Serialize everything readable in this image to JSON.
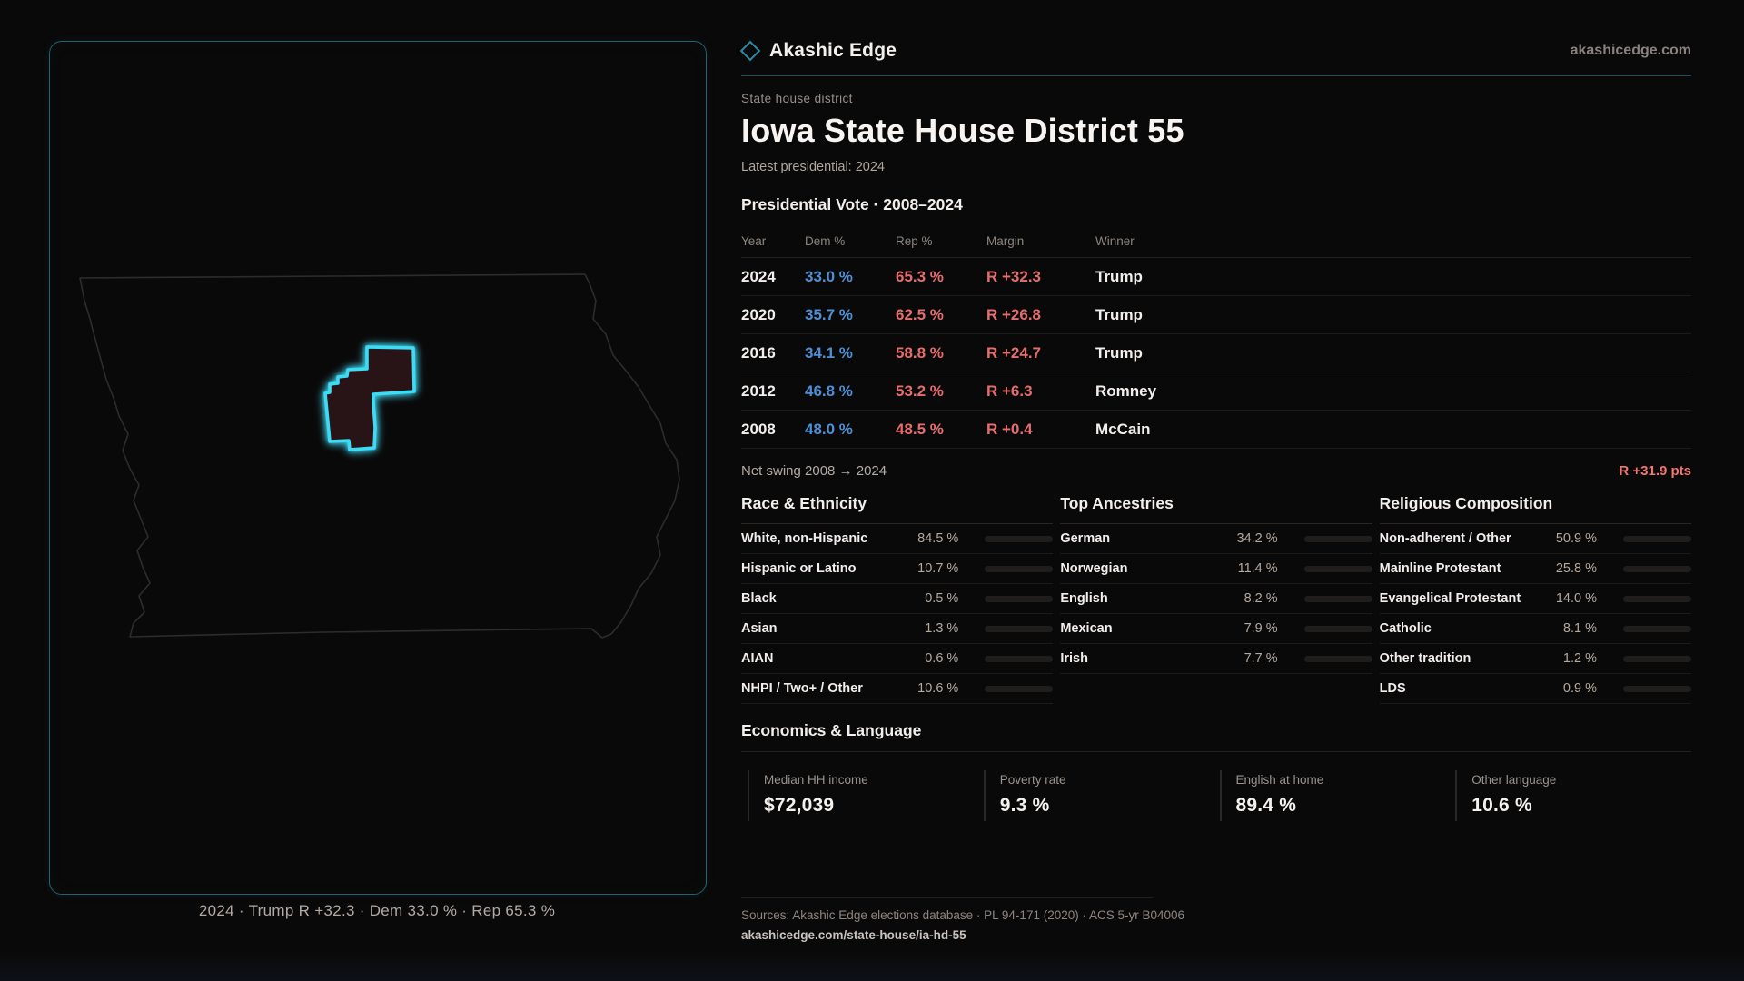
{
  "brand": {
    "name": "Akashic Edge",
    "site": "akashicedge.com"
  },
  "page": {
    "kicker": "State house district",
    "title": "Iowa State House District 55",
    "latest_line": "Latest presidential: 2024"
  },
  "vote_table": {
    "title": "Presidential Vote · 2008–2024",
    "columns": [
      "Year",
      "Dem %",
      "Rep %",
      "Margin",
      "Winner"
    ],
    "rows": [
      {
        "year": "2024",
        "dem": "33.0 %",
        "rep": "65.3 %",
        "margin": "R +32.3",
        "winner": "Trump"
      },
      {
        "year": "2020",
        "dem": "35.7 %",
        "rep": "62.5 %",
        "margin": "R +26.8",
        "winner": "Trump"
      },
      {
        "year": "2016",
        "dem": "34.1 %",
        "rep": "58.8 %",
        "margin": "R +24.7",
        "winner": "Trump"
      },
      {
        "year": "2012",
        "dem": "46.8 %",
        "rep": "53.2 %",
        "margin": "R +6.3",
        "winner": "Romney"
      },
      {
        "year": "2008",
        "dem": "48.0 %",
        "rep": "48.5 %",
        "margin": "R +0.4",
        "winner": "McCain"
      }
    ],
    "net_swing_label": "Net swing 2008 → 2024",
    "net_swing_value": "R +31.9 pts"
  },
  "demographics": [
    {
      "title": "Race & Ethnicity",
      "rows": [
        {
          "label": "White, non-Hispanic",
          "value": "84.5 %",
          "pct": 84.5
        },
        {
          "label": "Hispanic or Latino",
          "value": "10.7 %",
          "pct": 10.7
        },
        {
          "label": "Black",
          "value": "0.5 %",
          "pct": 0.5
        },
        {
          "label": "Asian",
          "value": "1.3 %",
          "pct": 1.3
        },
        {
          "label": "AIAN",
          "value": "0.6 %",
          "pct": 0.6
        },
        {
          "label": "NHPI / Two+ / Other",
          "value": "10.6 %",
          "pct": 10.6
        }
      ]
    },
    {
      "title": "Top Ancestries",
      "rows": [
        {
          "label": "German",
          "value": "34.2 %",
          "pct": 34.2
        },
        {
          "label": "Norwegian",
          "value": "11.4 %",
          "pct": 11.4
        },
        {
          "label": "English",
          "value": "8.2 %",
          "pct": 8.2
        },
        {
          "label": "Mexican",
          "value": "7.9 %",
          "pct": 7.9
        },
        {
          "label": "Irish",
          "value": "7.7 %",
          "pct": 7.7
        }
      ]
    },
    {
      "title": "Religious Composition",
      "rows": [
        {
          "label": "Non-adherent / Other",
          "value": "50.9 %",
          "pct": 50.9
        },
        {
          "label": "Mainline Protestant",
          "value": "25.8 %",
          "pct": 25.8
        },
        {
          "label": "Evangelical Protestant",
          "value": "14.0 %",
          "pct": 14.0
        },
        {
          "label": "Catholic",
          "value": "8.1 %",
          "pct": 8.1
        },
        {
          "label": "Other tradition",
          "value": "1.2 %",
          "pct": 1.2
        },
        {
          "label": "LDS",
          "value": "0.9 %",
          "pct": 0.9
        }
      ]
    }
  ],
  "economics": {
    "title": "Economics & Language",
    "stats": [
      {
        "label": "Median HH income",
        "value": "$72,039"
      },
      {
        "label": "Poverty rate",
        "value": "9.3 %"
      },
      {
        "label": "English at home",
        "value": "89.4 %"
      },
      {
        "label": "Other language",
        "value": "10.6 %"
      }
    ]
  },
  "map": {
    "caption": "2024 · Trump R +32.3 · Dem 33.0 % · Rep 65.3 %"
  },
  "footer": {
    "sources": "Sources: Akashic Edge elections database · PL 94-171 (2020) · ACS 5-yr B04006",
    "permalink": "akashicedge.com/state-house/ia-hd-55"
  },
  "colors": {
    "accent_cyan": "#3ddcf5",
    "dem_blue": "#4e8fd6",
    "rep_red": "#e66d6d",
    "panel_border": "#1f6e82",
    "bar_fill": "#c9c6c3"
  }
}
